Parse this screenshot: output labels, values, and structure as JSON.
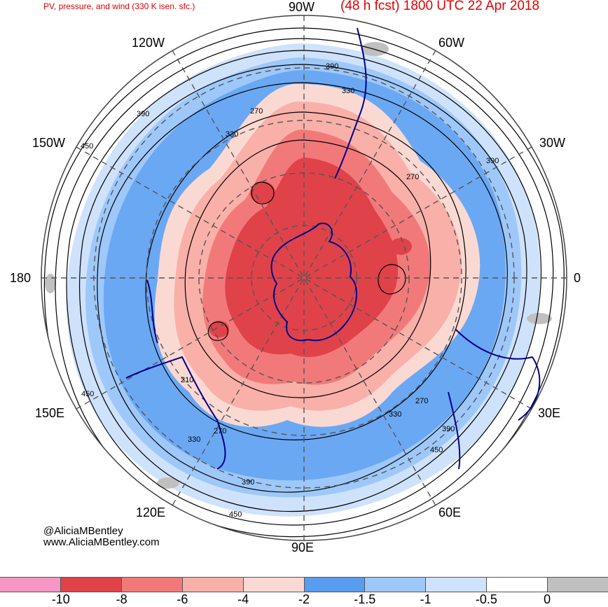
{
  "header": {
    "product": "PV, pressure, and wind (330 K isen. sfc.)",
    "forecast": "(48 h fcst) 1800 UTC 22 Apr 2018"
  },
  "longitude_labels": {
    "top": "90W",
    "top_left": "120W",
    "top_right": "60W",
    "upper_left": "150W",
    "upper_right": "30W",
    "left": "180",
    "right": "0",
    "lower_left": "150E",
    "lower_right": "30E",
    "bottom_left": "120E",
    "bottom_right": "60E",
    "bottom": "90E"
  },
  "contour_labels": [
    "390",
    "330",
    "270",
    "330",
    "390",
    "450",
    "390",
    "270",
    "210",
    "450",
    "330",
    "270",
    "390",
    "450",
    "270",
    "330",
    "390",
    "450"
  ],
  "credits": {
    "handle": "@AliciaMBentley",
    "site": "www.AliciaMBentley.com"
  },
  "colorbar": {
    "colors": [
      "#f497c4",
      "#e0424a",
      "#f2797a",
      "#f9b0a9",
      "#fbd9d3",
      "#5a9df0",
      "#9ec8f9",
      "#cfe2fb",
      "#ffffff",
      "#c0c0c0"
    ],
    "ticks": [
      "-10",
      "-8",
      "-6",
      "-4",
      "-2",
      "-1.5",
      "-1",
      "-0.5",
      "0"
    ]
  },
  "map_colors": {
    "strong_negative": "#e0424a",
    "moderate_negative": "#f2797a",
    "weak_negative": "#f9b0a9",
    "faint_negative": "#fbd9d3",
    "blue_band": "#5a9df0",
    "light_blue": "#9ec8f9",
    "pale_blue": "#cfe2fb",
    "coastline": "#00008b",
    "gray_terrain": "#c0c0c0"
  }
}
